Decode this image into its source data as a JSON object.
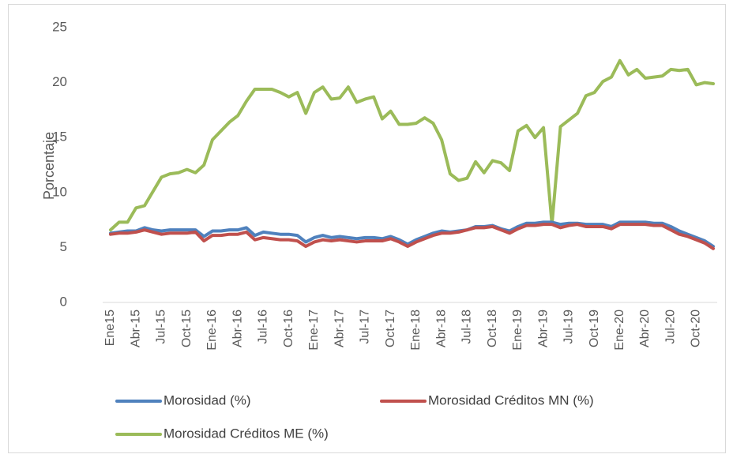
{
  "chart_data": {
    "type": "line",
    "y_label": "Porcentaje",
    "categories": [
      "Ene15",
      null,
      null,
      "Abr-15",
      null,
      null,
      "Jul-15",
      null,
      null,
      "Oct-15",
      null,
      null,
      "Ene-16",
      null,
      null,
      "Abr-16",
      null,
      null,
      "Jul-16",
      null,
      null,
      "Oct-16",
      null,
      null,
      "Ene-17",
      null,
      null,
      "Abr-17",
      null,
      null,
      "Jul-17",
      null,
      null,
      "Oct-17",
      null,
      null,
      "Ene-18",
      null,
      null,
      "Abr-18",
      null,
      null,
      "Jul-18",
      null,
      null,
      "Oct-18",
      null,
      null,
      "Ene-19",
      null,
      null,
      "Abr-19",
      null,
      null,
      "Jul-19",
      null,
      null,
      "Oct-19",
      null,
      null,
      "Ene-20",
      null,
      null,
      "Abr-20",
      null,
      null,
      "Jul-20",
      null,
      null,
      "Oct-20",
      null,
      null
    ],
    "series": [
      {
        "name": "Morosidad (%)",
        "color": "#4f81bd",
        "values": [
          6.3,
          6.4,
          6.5,
          6.5,
          6.8,
          6.6,
          6.5,
          6.6,
          6.6,
          6.6,
          6.6,
          6.0,
          6.5,
          6.5,
          6.6,
          6.6,
          6.8,
          6.1,
          6.4,
          6.3,
          6.2,
          6.2,
          6.1,
          5.5,
          5.9,
          6.1,
          5.9,
          6.0,
          5.9,
          5.8,
          5.9,
          5.9,
          5.8,
          6.0,
          5.7,
          5.3,
          5.7,
          6.0,
          6.3,
          6.5,
          6.4,
          6.5,
          6.6,
          6.9,
          6.9,
          7.0,
          6.7,
          6.5,
          6.9,
          7.2,
          7.2,
          7.3,
          7.3,
          7.1,
          7.2,
          7.2,
          7.1,
          7.1,
          7.1,
          6.9,
          7.3,
          7.3,
          7.3,
          7.3,
          7.2,
          7.2,
          6.9,
          6.5,
          6.2,
          5.9,
          5.6,
          5.1
        ]
      },
      {
        "name": "Morosidad Créditos MN (%)",
        "color": "#c0504d",
        "values": [
          6.2,
          6.3,
          6.3,
          6.4,
          6.6,
          6.4,
          6.2,
          6.3,
          6.3,
          6.3,
          6.4,
          5.6,
          6.1,
          6.1,
          6.2,
          6.2,
          6.4,
          5.7,
          5.9,
          5.8,
          5.7,
          5.7,
          5.6,
          5.1,
          5.5,
          5.7,
          5.6,
          5.7,
          5.6,
          5.5,
          5.6,
          5.6,
          5.6,
          5.8,
          5.5,
          5.1,
          5.5,
          5.8,
          6.1,
          6.3,
          6.3,
          6.4,
          6.6,
          6.8,
          6.8,
          6.9,
          6.6,
          6.3,
          6.7,
          7.0,
          7.0,
          7.1,
          7.1,
          6.8,
          7.0,
          7.1,
          6.9,
          6.9,
          6.9,
          6.7,
          7.1,
          7.1,
          7.1,
          7.1,
          7.0,
          7.0,
          6.6,
          6.2,
          6.0,
          5.7,
          5.4,
          4.9
        ]
      },
      {
        "name": "Morosidad Créditos ME (%)",
        "color": "#9bbb59",
        "values": [
          6.6,
          7.3,
          7.3,
          8.6,
          8.8,
          10.1,
          11.4,
          11.7,
          11.8,
          12.1,
          11.8,
          12.5,
          14.8,
          15.6,
          16.4,
          17.0,
          18.3,
          19.4,
          19.4,
          19.4,
          19.1,
          18.7,
          19.1,
          17.2,
          19.1,
          19.6,
          18.5,
          18.6,
          19.6,
          18.2,
          18.5,
          18.7,
          16.7,
          17.4,
          16.2,
          16.2,
          16.3,
          16.8,
          16.3,
          14.8,
          11.7,
          11.1,
          11.3,
          12.8,
          11.8,
          12.9,
          12.7,
          12.0,
          15.6,
          16.1,
          15.0,
          15.9,
          7.1,
          16.0,
          16.6,
          17.2,
          18.8,
          19.1,
          20.1,
          20.5,
          22.0,
          20.7,
          21.2,
          20.4,
          20.5,
          20.6,
          21.2,
          21.1,
          21.2,
          19.8,
          20.0,
          19.9
        ]
      }
    ],
    "ylim": [
      0,
      25
    ],
    "yticks": [
      0,
      5,
      10,
      15,
      20,
      25
    ],
    "grid": false,
    "legend": "bottom"
  }
}
